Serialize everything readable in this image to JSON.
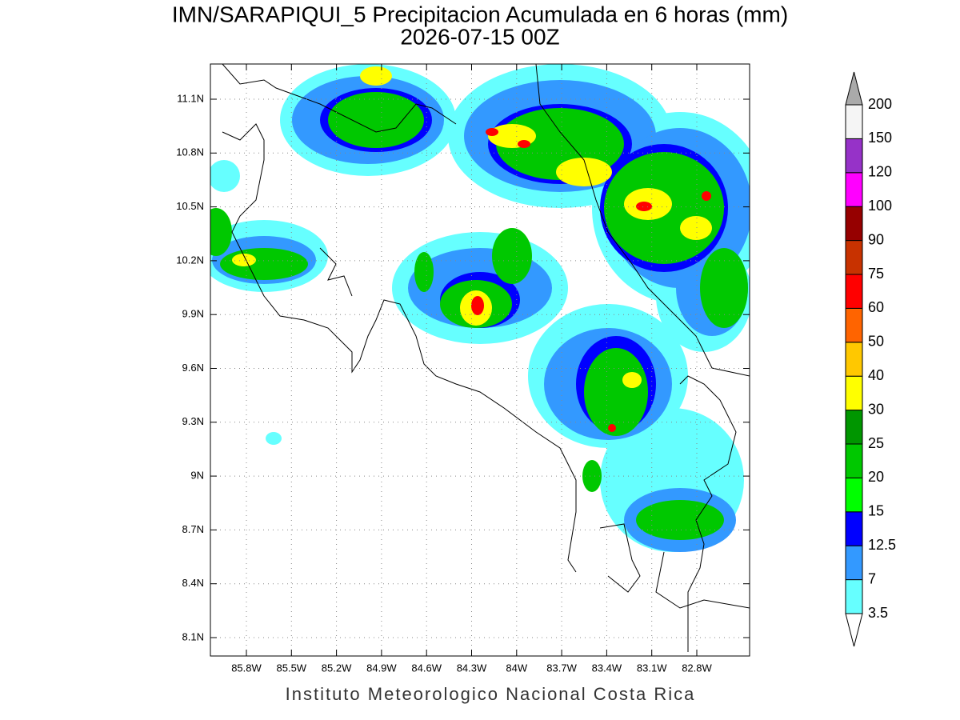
{
  "header": {
    "title": "IMN/SARAPIQUI_5 Precipitacion Acumulada en 6 horas (mm)",
    "subtitle": "2026-07-15 00Z"
  },
  "map": {
    "lon_ticks": [
      {
        "value": -85.8,
        "label": "85.8W"
      },
      {
        "value": -85.5,
        "label": "85.5W"
      },
      {
        "value": -85.2,
        "label": "85.2W"
      },
      {
        "value": -84.9,
        "label": "84.9W"
      },
      {
        "value": -84.6,
        "label": "84.6W"
      },
      {
        "value": -84.3,
        "label": "84.3W"
      },
      {
        "value": -84,
        "label": "84W"
      },
      {
        "value": -83.7,
        "label": "83.7W"
      },
      {
        "value": -83.4,
        "label": "83.4W"
      },
      {
        "value": -83.1,
        "label": "83.1W"
      },
      {
        "value": -82.8,
        "label": "82.8W"
      }
    ],
    "lat_ticks": [
      {
        "value": 11.1,
        "label": "11.1N"
      },
      {
        "value": 10.8,
        "label": "10.8N"
      },
      {
        "value": 10.5,
        "label": "10.5N"
      },
      {
        "value": 10.2,
        "label": "10.2N"
      },
      {
        "value": 9.9,
        "label": "9.9N"
      },
      {
        "value": 9.6,
        "label": "9.6N"
      },
      {
        "value": 9.3,
        "label": "9.3N"
      },
      {
        "value": 9,
        "label": "9N"
      },
      {
        "value": 8.7,
        "label": "8.7N"
      },
      {
        "value": 8.4,
        "label": "8.4N"
      },
      {
        "value": 8.1,
        "label": "8.1N"
      }
    ],
    "grid": true
  },
  "colorbar": {
    "levels": [
      3.5,
      7,
      12.5,
      15,
      20,
      25,
      30,
      40,
      50,
      60,
      75,
      90,
      100,
      120,
      150,
      200
    ],
    "colors": [
      "#66ffff",
      "#3399ff",
      "#0000ff",
      "#00ff00",
      "#00c800",
      "#009600",
      "#ffff00",
      "#ffc800",
      "#ff6400",
      "#ff0000",
      "#c83200",
      "#960000",
      "#ff00ff",
      "#9632c8",
      "#f5f5f5"
    ],
    "over_color": "#aaaaaa",
    "under_color": "#ffffff"
  },
  "footer": "Instituto Meteorologico Nacional Costa Rica"
}
